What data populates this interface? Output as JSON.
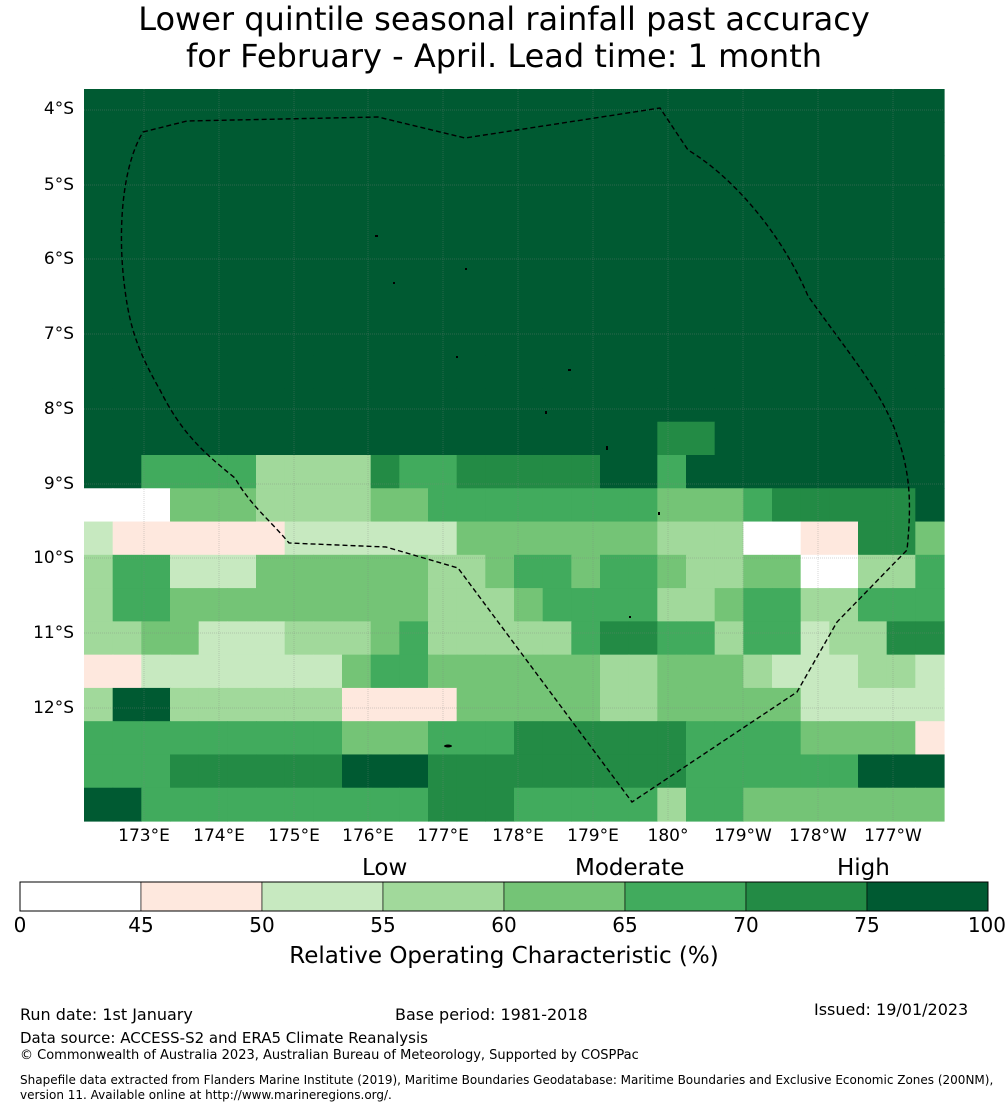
{
  "title": {
    "line1": "Lower quintile seasonal rainfall past accuracy",
    "line2": "for February - April. Lead time: 1 month"
  },
  "map": {
    "lat_labels": [
      "4°S",
      "5°S",
      "6°S",
      "7°S",
      "8°S",
      "9°S",
      "10°S",
      "11°S",
      "12°S"
    ],
    "lon_labels": [
      "173°E",
      "174°E",
      "175°E",
      "176°E",
      "177°E",
      "178°E",
      "179°E",
      "180°",
      "179°W",
      "178°W",
      "177°W"
    ],
    "rows": [
      "777777777777777777777777777777",
      "777777777777777777777777777777",
      "777777777777777777777777777777",
      "777777777777777777777777777777",
      "777777777777777777777777777777",
      "777777777777777777777777777777",
      "777777777777777777777777777777",
      "777777777777777777777777777777",
      "777777777777777777777777777777",
      "777777777777777777777777777777",
      "777777777777777777776677777777",
      "775555333365566666775777777777",
      "000444333344555555554445666667",
      "211111122222244444443330011664",
      "355222444444334554554334400335",
      "355444444444333455553345533555",
      "334422233345333335665535523366",
      "112222222455444444334443222332",
      "377333333111144444334444422222",
      "555555555444555666666555544441",
      "555666666777666666666555555777",
      "775555555555666555553554444444"
    ]
  },
  "colorbar": {
    "ticks": [
      "0",
      "45",
      "50",
      "55",
      "60",
      "65",
      "70",
      "75",
      "100"
    ],
    "categories": {
      "low": "Low",
      "moderate": "Moderate",
      "high": "High"
    },
    "title": "Relative Operating Characteristic (%)",
    "colors": [
      "#ffffff",
      "#fee8de",
      "#c7e9c0",
      "#a1d99b",
      "#74c476",
      "#41ab5d",
      "#238b45",
      "#005a32"
    ]
  },
  "footer": {
    "run_date": "Run date: 1st January",
    "base_period": "Base period: 1981-2018",
    "issued": "Issued: 19/01/2023",
    "data_source": "Data source: ACCESS-S2 and ERA5 Climate Reanalysis",
    "copyright": "© Commonwealth of Australia 2023, Australian Bureau of Meteorology, Supported by COSPPac",
    "shapefile_line1": "Shapefile data extracted from Flanders Marine Institute (2019), Maritime Boundaries Geodatabase: Maritime Boundaries and Exclusive Economic Zones (200NM),",
    "shapefile_line2": "version 11. Available online at http://www.marineregions.org/."
  }
}
